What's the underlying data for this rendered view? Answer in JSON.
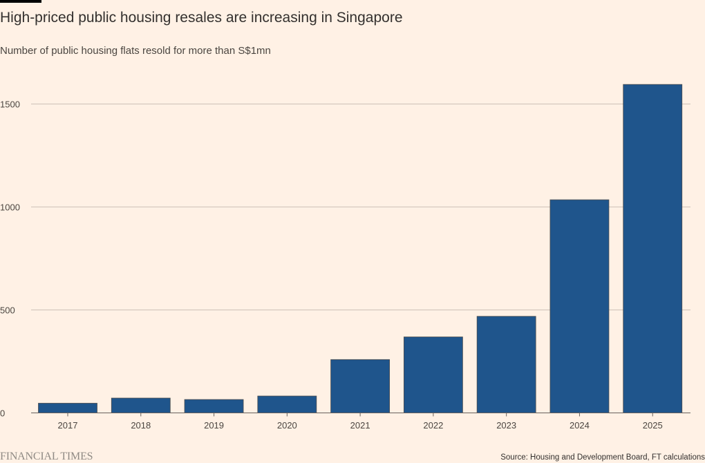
{
  "header": {
    "title": "High-priced public housing resales are increasing in Singapore",
    "subtitle": "Number of public housing flats resold for more than S$1mn"
  },
  "footer": {
    "brand": "FINANCIAL TIMES",
    "source": "Source: Housing and Development Board, FT calculations"
  },
  "colors": {
    "background": "#fff1e5",
    "bar": "#1f558c",
    "gridline": "#ccc1b7"
  },
  "chart_data": {
    "type": "bar",
    "title": "High-priced public housing resales are increasing in Singapore",
    "subtitle": "Number of public housing flats resold for more than S$1mn",
    "categories": [
      "2017",
      "2018",
      "2019",
      "2020",
      "2021",
      "2022",
      "2023",
      "2024",
      "2025"
    ],
    "values": [
      47,
      72,
      65,
      82,
      259,
      369,
      469,
      1035,
      1595
    ],
    "ylim": [
      0,
      1600
    ],
    "yticks": [
      0,
      500,
      1000,
      1500
    ],
    "grid": true
  }
}
